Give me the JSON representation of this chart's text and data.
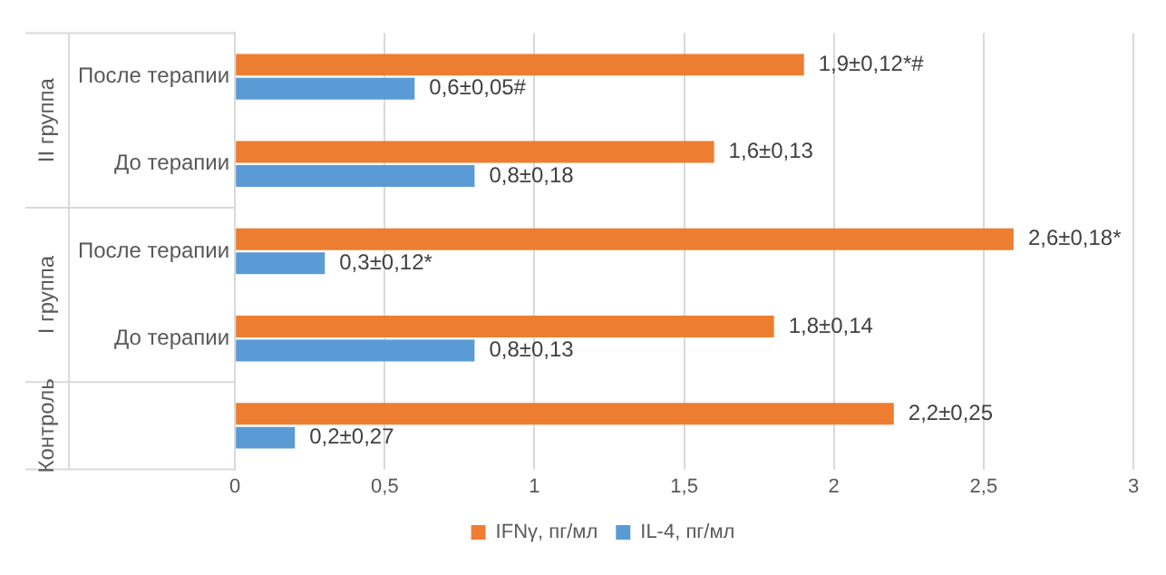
{
  "chart_data": {
    "type": "bar",
    "orientation": "horizontal",
    "categories": [
      "После терапии",
      "До терапии",
      "После терапии",
      "До терапии",
      null
    ],
    "series": [
      {
        "name": "IFNγ, пг/мл",
        "color": "#ed7d31",
        "values": [
          1.9,
          1.6,
          2.6,
          1.8,
          2.2
        ],
        "value_labels": [
          "1,9±0,12*#",
          "1,6±0,13",
          "2,6±0,18*",
          "1,8±0,14",
          "2,2±0,25"
        ]
      },
      {
        "name": "IL-4, пг/мл",
        "color": "#5b9bd5",
        "values": [
          0.6,
          0.8,
          0.3,
          0.8,
          0.2
        ],
        "value_labels": [
          "0,6±0,05#",
          "0,8±0,18",
          "0,3±0,12*",
          "0,8±0,13",
          "0,2±0,27"
        ]
      }
    ],
    "xlim": [
      0,
      3
    ],
    "xticks": [
      0,
      {
        "value": 0.5,
        "label": "0,5"
      },
      1,
      {
        "value": 1.5,
        "label": "1,5"
      },
      2,
      {
        "value": 2.5,
        "label": "2,5"
      },
      3
    ],
    "annotations": [
      "II группа",
      "I группа",
      "Контроль"
    ],
    "grid": "x",
    "legend": "bottom"
  }
}
